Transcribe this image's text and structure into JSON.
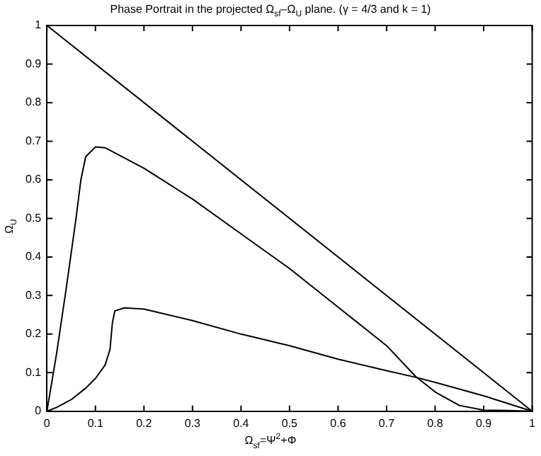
{
  "chart_data": {
    "type": "line",
    "title": "Phase Portrait in the projected Ω$_{sf}$–Ω$_{U}$ plane. (γ = 4/3 and k = 1)",
    "xlabel": "Ω$_{sf}$=Ψ$^{2}$+Φ",
    "ylabel": "Ω$_{U}$",
    "xlim": [
      0,
      1
    ],
    "ylim": [
      0,
      1
    ],
    "xticks": [
      0,
      0.1,
      0.2,
      0.3,
      0.4,
      0.5,
      0.6,
      0.7,
      0.8,
      0.9,
      1
    ],
    "yticks": [
      0,
      0.1,
      0.2,
      0.3,
      0.4,
      0.5,
      0.6,
      0.7,
      0.8,
      0.9,
      1
    ],
    "grid": false,
    "legend": false,
    "marker": "none",
    "line_style": "solid",
    "series": [
      {
        "color": "#000000",
        "x": [
          0,
          1
        ],
        "values": [
          1,
          0
        ]
      },
      {
        "color": "#000000",
        "x": [
          0,
          0.02,
          0.04,
          0.06,
          0.07,
          0.08,
          0.1,
          0.12,
          0.2,
          0.3,
          0.4,
          0.5,
          0.6,
          0.7,
          0.76,
          0.8,
          0.85,
          0.9,
          0.95,
          1
        ],
        "values": [
          0,
          0.15,
          0.32,
          0.5,
          0.6,
          0.66,
          0.685,
          0.683,
          0.63,
          0.55,
          0.46,
          0.37,
          0.27,
          0.17,
          0.09,
          0.05,
          0.015,
          0.003,
          0.002,
          0
        ]
      },
      {
        "color": "#000000",
        "x": [
          0,
          0.02,
          0.05,
          0.08,
          0.1,
          0.12,
          0.13,
          0.135,
          0.14,
          0.16,
          0.2,
          0.3,
          0.4,
          0.5,
          0.6,
          0.7,
          0.76,
          0.8,
          0.9,
          1
        ],
        "values": [
          0,
          0.01,
          0.03,
          0.06,
          0.085,
          0.12,
          0.16,
          0.23,
          0.26,
          0.268,
          0.265,
          0.235,
          0.2,
          0.17,
          0.135,
          0.105,
          0.088,
          0.075,
          0.04,
          0
        ]
      }
    ]
  }
}
